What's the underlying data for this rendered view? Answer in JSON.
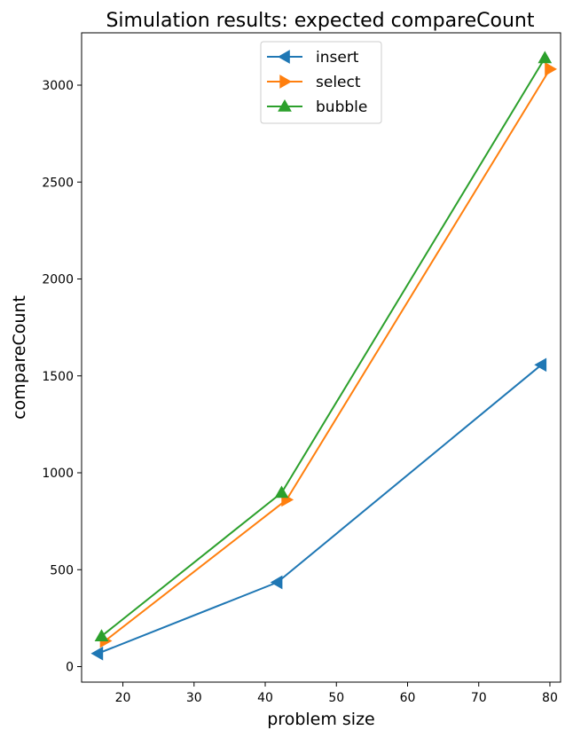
{
  "chart_data": {
    "type": "line",
    "title": "Simulation results: expected compareCount",
    "xlabel": "problem size",
    "ylabel": "compareCount",
    "xlim": [
      14.2,
      81.5
    ],
    "ylim": [
      -80,
      3270
    ],
    "x_ticks": [
      20,
      30,
      40,
      50,
      60,
      70,
      80
    ],
    "y_ticks": [
      0,
      500,
      1000,
      1500,
      2000,
      2500,
      3000
    ],
    "grid": false,
    "legend_position": "top-center",
    "series": [
      {
        "name": "insert",
        "color": "#1f77b4",
        "marker": "triangle-left",
        "x": [
          16.5,
          41.7,
          78.8
        ],
        "y": [
          68,
          435,
          1557
        ]
      },
      {
        "name": "select",
        "color": "#ff7f0e",
        "marker": "triangle-right",
        "x": [
          17.5,
          43.0,
          80.0
        ],
        "y": [
          133,
          861,
          3083
        ]
      },
      {
        "name": "bubble",
        "color": "#2ca02c",
        "marker": "triangle-up",
        "x": [
          17.0,
          42.3,
          79.3
        ],
        "y": [
          157,
          897,
          3140
        ]
      }
    ]
  }
}
